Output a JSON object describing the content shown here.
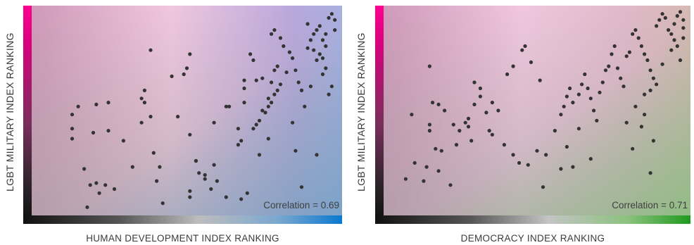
{
  "chart_data": [
    {
      "type": "scatter",
      "xlabel": "HUMAN DEVELOPMENT INDEX RANKING",
      "ylabel": "LGBT MILITARY INDEX RANKING",
      "annotation": "Correlation = 0.69",
      "correlation": 0.69,
      "xlim": [
        0,
        1
      ],
      "ylim": [
        0,
        1
      ],
      "grid": false,
      "legend": "none",
      "colors": {
        "point": "#333333",
        "axis_y_top": "#ff0090",
        "axis_y_bottom": "#111111",
        "axis_x_left": "#111111",
        "axis_x_right": "#0a78d0"
      },
      "points": [
        [
          0.12,
          0.36
        ],
        [
          0.16,
          0.21
        ],
        [
          0.12,
          0.41
        ],
        [
          0.19,
          0.39
        ],
        [
          0.24,
          0.4
        ],
        [
          0.29,
          0.35
        ],
        [
          0.12,
          0.48
        ],
        [
          0.14,
          0.52
        ],
        [
          0.2,
          0.53
        ],
        [
          0.24,
          0.54
        ],
        [
          0.18,
          0.13
        ],
        [
          0.26,
          0.11
        ],
        [
          0.21,
          0.09
        ],
        [
          0.23,
          0.13
        ],
        [
          0.17,
          0.02
        ],
        [
          0.32,
          0.22
        ],
        [
          0.2,
          0.14
        ],
        [
          0.36,
          0.54
        ],
        [
          0.36,
          0.6
        ],
        [
          0.38,
          0.8
        ],
        [
          0.35,
          0.56
        ],
        [
          0.38,
          0.47
        ],
        [
          0.35,
          0.44
        ],
        [
          0.39,
          0.29
        ],
        [
          0.4,
          0.15
        ],
        [
          0.42,
          0.04
        ],
        [
          0.45,
          0.67
        ],
        [
          0.51,
          0.78
        ],
        [
          0.5,
          0.71
        ],
        [
          0.49,
          0.68
        ],
        [
          0.41,
          0.22
        ],
        [
          0.47,
          0.47
        ],
        [
          0.51,
          0.38
        ],
        [
          0.53,
          0.25
        ],
        [
          0.53,
          0.25
        ],
        [
          0.56,
          0.18
        ],
        [
          0.59,
          0.23
        ],
        [
          0.59,
          0.44
        ],
        [
          0.63,
          0.52
        ],
        [
          0.64,
          0.52
        ],
        [
          0.67,
          0.41
        ],
        [
          0.67,
          0.33
        ],
        [
          0.68,
          0.35
        ],
        [
          0.69,
          0.65
        ],
        [
          0.69,
          0.61
        ],
        [
          0.69,
          0.54
        ],
        [
          0.71,
          0.78
        ],
        [
          0.72,
          0.75
        ],
        [
          0.73,
          0.65
        ],
        [
          0.75,
          0.66
        ],
        [
          0.74,
          0.28
        ],
        [
          0.7,
          0.09
        ],
        [
          0.63,
          0.07
        ],
        [
          0.68,
          0.06
        ],
        [
          0.6,
          0.15
        ],
        [
          0.51,
          0.1
        ],
        [
          0.51,
          0.07
        ],
        [
          0.54,
          0.19
        ],
        [
          0.56,
          0.16
        ],
        [
          0.58,
          0.11
        ],
        [
          0.72,
          0.41
        ],
        [
          0.73,
          0.43
        ],
        [
          0.74,
          0.45
        ],
        [
          0.76,
          0.49
        ],
        [
          0.77,
          0.52
        ],
        [
          0.78,
          0.54
        ],
        [
          0.79,
          0.58
        ],
        [
          0.8,
          0.6
        ],
        [
          0.81,
          0.63
        ],
        [
          0.83,
          0.69
        ],
        [
          0.8,
          0.72
        ],
        [
          0.79,
          0.7
        ],
        [
          0.78,
          0.64
        ],
        [
          0.77,
          0.56
        ],
        [
          0.75,
          0.5
        ],
        [
          0.77,
          0.36
        ],
        [
          0.78,
          0.88
        ],
        [
          0.79,
          0.9
        ],
        [
          0.81,
          0.86
        ],
        [
          0.82,
          0.82
        ],
        [
          0.84,
          0.79
        ],
        [
          0.85,
          0.76
        ],
        [
          0.86,
          0.7
        ],
        [
          0.87,
          0.64
        ],
        [
          0.88,
          0.6
        ],
        [
          0.89,
          0.52
        ],
        [
          0.85,
          0.44
        ],
        [
          0.86,
          0.3
        ],
        [
          0.9,
          0.81
        ],
        [
          0.91,
          0.85
        ],
        [
          0.92,
          0.88
        ],
        [
          0.93,
          0.9
        ],
        [
          0.94,
          0.92
        ],
        [
          0.95,
          0.85
        ],
        [
          0.96,
          0.88
        ],
        [
          0.97,
          0.96
        ],
        [
          0.98,
          0.98
        ],
        [
          0.99,
          0.95
        ],
        [
          0.99,
          0.9
        ],
        [
          0.96,
          0.82
        ],
        [
          0.94,
          0.78
        ],
        [
          0.93,
          0.75
        ],
        [
          0.95,
          0.68
        ],
        [
          0.96,
          0.71
        ],
        [
          0.98,
          0.62
        ],
        [
          0.9,
          0.93
        ],
        [
          0.92,
          0.8
        ],
        [
          0.88,
          0.12
        ],
        [
          0.93,
          0.28
        ],
        [
          0.97,
          0.58
        ],
        [
          0.95,
          0.76
        ],
        [
          0.91,
          0.62
        ]
      ]
    },
    {
      "type": "scatter",
      "xlabel": "DEMOCRACY INDEX RANKING",
      "ylabel": "LGBT MILITARY INDEX RANKING",
      "annotation": "Correlation = 0.71",
      "correlation": 0.71,
      "xlim": [
        0,
        1
      ],
      "ylim": [
        0,
        1
      ],
      "grid": false,
      "legend": "none",
      "colors": {
        "point": "#333333",
        "axis_y_top": "#ff0090",
        "axis_y_bottom": "#111111",
        "axis_x_left": "#111111",
        "axis_x_right": "#1e9a1e"
      },
      "points": [
        [
          0.06,
          0.16
        ],
        [
          0.13,
          0.22
        ],
        [
          0.12,
          0.15
        ],
        [
          0.14,
          0.43
        ],
        [
          0.16,
          0.31
        ],
        [
          0.17,
          0.2
        ],
        [
          0.08,
          0.48
        ],
        [
          0.09,
          0.24
        ],
        [
          0.14,
          0.4
        ],
        [
          0.18,
          0.3
        ],
        [
          0.21,
          0.13
        ],
        [
          0.23,
          0.33
        ],
        [
          0.15,
          0.54
        ],
        [
          0.17,
          0.53
        ],
        [
          0.19,
          0.5
        ],
        [
          0.22,
          0.43
        ],
        [
          0.24,
          0.4
        ],
        [
          0.26,
          0.44
        ],
        [
          0.27,
          0.46
        ],
        [
          0.29,
          0.53
        ],
        [
          0.31,
          0.57
        ],
        [
          0.33,
          0.49
        ],
        [
          0.35,
          0.54
        ],
        [
          0.37,
          0.5
        ],
        [
          0.34,
          0.4
        ],
        [
          0.35,
          0.38
        ],
        [
          0.27,
          0.42
        ],
        [
          0.28,
          0.35
        ],
        [
          0.29,
          0.64
        ],
        [
          0.31,
          0.61
        ],
        [
          0.14,
          0.72
        ],
        [
          0.4,
          0.68
        ],
        [
          0.42,
          0.72
        ],
        [
          0.45,
          0.8
        ],
        [
          0.46,
          0.82
        ],
        [
          0.48,
          0.74
        ],
        [
          0.51,
          0.65
        ],
        [
          0.39,
          0.33
        ],
        [
          0.42,
          0.28
        ],
        [
          0.44,
          0.24
        ],
        [
          0.47,
          0.23
        ],
        [
          0.5,
          0.3
        ],
        [
          0.53,
          0.28
        ],
        [
          0.56,
          0.4
        ],
        [
          0.58,
          0.48
        ],
        [
          0.59,
          0.52
        ],
        [
          0.6,
          0.57
        ],
        [
          0.61,
          0.61
        ],
        [
          0.62,
          0.54
        ],
        [
          0.64,
          0.58
        ],
        [
          0.65,
          0.63
        ],
        [
          0.66,
          0.68
        ],
        [
          0.67,
          0.61
        ],
        [
          0.68,
          0.56
        ],
        [
          0.69,
          0.5
        ],
        [
          0.7,
          0.45
        ],
        [
          0.71,
          0.59
        ],
        [
          0.72,
          0.64
        ],
        [
          0.73,
          0.7
        ],
        [
          0.74,
          0.72
        ],
        [
          0.75,
          0.78
        ],
        [
          0.76,
          0.82
        ],
        [
          0.77,
          0.71
        ],
        [
          0.78,
          0.66
        ],
        [
          0.79,
          0.62
        ],
        [
          0.8,
          0.77
        ],
        [
          0.81,
          0.79
        ],
        [
          0.82,
          0.88
        ],
        [
          0.83,
          0.9
        ],
        [
          0.84,
          0.86
        ],
        [
          0.85,
          0.82
        ],
        [
          0.86,
          0.78
        ],
        [
          0.87,
          0.75
        ],
        [
          0.88,
          0.7
        ],
        [
          0.89,
          0.66
        ],
        [
          0.9,
          0.92
        ],
        [
          0.91,
          0.95
        ],
        [
          0.92,
          0.98
        ],
        [
          0.93,
          0.96
        ],
        [
          0.94,
          0.9
        ],
        [
          0.95,
          0.88
        ],
        [
          0.96,
          0.93
        ],
        [
          0.97,
          0.97
        ],
        [
          0.98,
          0.99
        ],
        [
          0.99,
          0.95
        ],
        [
          0.99,
          0.91
        ],
        [
          0.95,
          0.8
        ],
        [
          0.92,
          0.73
        ],
        [
          0.9,
          0.63
        ],
        [
          0.88,
          0.6
        ],
        [
          0.86,
          0.58
        ],
        [
          0.83,
          0.52
        ],
        [
          0.8,
          0.44
        ],
        [
          0.82,
          0.31
        ],
        [
          0.85,
          0.42
        ],
        [
          0.86,
          0.48
        ],
        [
          0.89,
          0.35
        ],
        [
          0.88,
          0.19
        ],
        [
          0.64,
          0.41
        ],
        [
          0.68,
          0.26
        ],
        [
          0.52,
          0.12
        ],
        [
          0.58,
          0.21
        ],
        [
          0.6,
          0.32
        ],
        [
          0.62,
          0.22
        ],
        [
          0.96,
          0.85
        ],
        [
          0.97,
          0.82
        ],
        [
          0.98,
          0.75
        ],
        [
          0.99,
          0.86
        ]
      ]
    }
  ]
}
